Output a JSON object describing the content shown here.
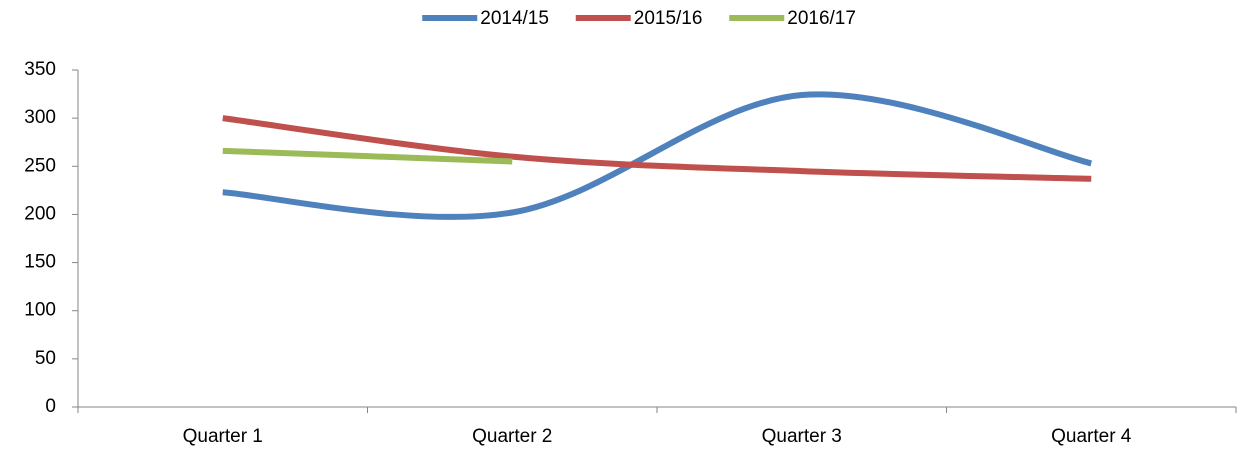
{
  "chart_data": {
    "type": "line",
    "categories": [
      "Quarter 1",
      "Quarter 2",
      "Quarter 3",
      "Quarter 4"
    ],
    "series": [
      {
        "name": "2014/15",
        "color": "#4f81bd",
        "values": [
          223,
          202,
          324,
          253
        ]
      },
      {
        "name": "2015/16",
        "color": "#c0504d",
        "values": [
          300,
          260,
          245,
          237
        ]
      },
      {
        "name": "2016/17",
        "color": "#9bbb59",
        "values": [
          266,
          255,
          null,
          null
        ]
      }
    ],
    "ylim": [
      0,
      350
    ],
    "yticks": [
      0,
      50,
      100,
      150,
      200,
      250,
      300,
      350
    ],
    "smooth": true,
    "legend": "top",
    "grid": false
  }
}
